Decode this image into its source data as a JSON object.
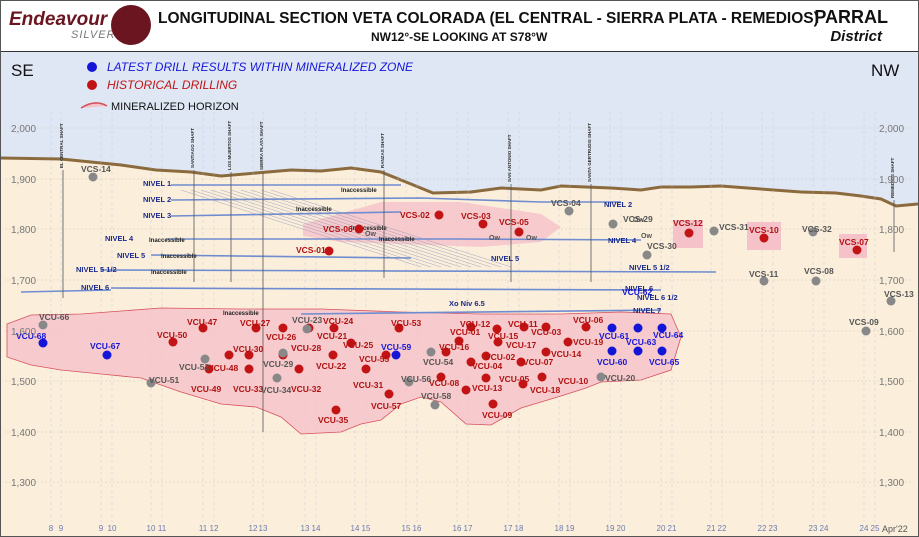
{
  "header": {
    "logo_name": "Endeavour",
    "logo_sub": "SILVER",
    "title": "LONGITUDINAL SECTION VETA COLORADA (EL CENTRAL - SIERRA PLATA - REMEDIOS)",
    "subtitle": "NW12°-SE LOOKING AT S78°W",
    "district_name": "PARRAL",
    "district_sub": "District"
  },
  "directions": {
    "left": "SE",
    "right": "NW"
  },
  "legend": {
    "latest": "LATEST DRILL RESULTS WITHIN MINERALIZED ZONE",
    "historical": "HISTORICAL DRILLING",
    "horizon": "MINERALIZED HORIZON"
  },
  "colors": {
    "sky": "#dfe7f5",
    "ground": "#fbefdc",
    "terrain": "#8b6a3e",
    "zone": "#f6c2c9",
    "blue_hole": "#1515d8",
    "red_hole": "#c21414",
    "gray_hole": "#888888",
    "level_line": "#6f8cd0",
    "label_blue": "#1a2a8c",
    "label_red": "#b01010"
  },
  "elevations": [
    "2,000",
    "1,900",
    "1,800",
    "1,700",
    "1,600",
    "1,500",
    "1,400",
    "1,300"
  ],
  "grid_labels": [
    "8",
    "9",
    "10",
    "11",
    "12",
    "13",
    "14",
    "15",
    "16",
    "17",
    "18",
    "19",
    "20",
    "21",
    "22",
    "23",
    "24",
    "25"
  ],
  "date": "Apr'22",
  "shafts": [
    "EL CENTRAL SHAFT",
    "SANTIAGO SHAFT",
    "LOS MUERTOS SHAFT",
    "SIERRA PLATA SHAFT",
    "RANZAS SHAFT",
    "SAN ANTONIO SHAFT",
    "SANTA GERTRUDIS SHAFT",
    "REMEDIOS SHAFT"
  ],
  "levels": [
    "NIVEL 1",
    "NIVEL 2",
    "NIVEL 3",
    "NIVEL 4",
    "NIVEL 5",
    "NIVEL 5 1/2",
    "NIVEL 6",
    "NIVEL 2",
    "NIVEL 4",
    "NIVEL 5 1/2",
    "NIVEL 6",
    "NIVEL 6 1/2",
    "NIVEL 7",
    "Xo Niv 6.5",
    "NIVEL 5"
  ],
  "level_notes": [
    "Inaccessible",
    "Inaccessible",
    "Inaccessible",
    "Inaccessible",
    "Inaccessible",
    "Inaccessible",
    "Inaccessible",
    "Inaccessible"
  ],
  "ow_notes": [
    "Ow",
    "Ow",
    "Ow",
    "Ow",
    "Ow"
  ],
  "holes": [
    {
      "id": "VCU-68",
      "type": "blue"
    },
    {
      "id": "VCU-67",
      "type": "blue"
    },
    {
      "id": "VCU-59",
      "type": "blue"
    },
    {
      "id": "VCU-61",
      "type": "blue"
    },
    {
      "id": "VCU-62",
      "type": "blue"
    },
    {
      "id": "VCU-63",
      "type": "blue"
    },
    {
      "id": "VCU-64",
      "type": "blue"
    },
    {
      "id": "VCU-60",
      "type": "blue"
    },
    {
      "id": "VCU-65",
      "type": "blue"
    },
    {
      "id": "VCS-02",
      "type": "red"
    },
    {
      "id": "VCS-03",
      "type": "red"
    },
    {
      "id": "VCS-05",
      "type": "red"
    },
    {
      "id": "VCS-06",
      "type": "red"
    },
    {
      "id": "VCS-01",
      "type": "red"
    },
    {
      "id": "VCS-12",
      "type": "red"
    },
    {
      "id": "VCS-10",
      "type": "red"
    },
    {
      "id": "VCS-07",
      "type": "red"
    },
    {
      "id": "VCU-50",
      "type": "red"
    },
    {
      "id": "VCU-47",
      "type": "red"
    },
    {
      "id": "VCU-27",
      "type": "red"
    },
    {
      "id": "VCU-26",
      "type": "red"
    },
    {
      "id": "VCU-24",
      "type": "red"
    },
    {
      "id": "VCU-53",
      "type": "red"
    },
    {
      "id": "VCU-21",
      "type": "red"
    },
    {
      "id": "VCU-48",
      "type": "red"
    },
    {
      "id": "VCU-30",
      "type": "red"
    },
    {
      "id": "VCU-28",
      "type": "red"
    },
    {
      "id": "VCU-25",
      "type": "red"
    },
    {
      "id": "VCU-55",
      "type": "red"
    },
    {
      "id": "VCU-22",
      "type": "red"
    },
    {
      "id": "VCU-49",
      "type": "red"
    },
    {
      "id": "VCU-33",
      "type": "red"
    },
    {
      "id": "VCU-32",
      "type": "red"
    },
    {
      "id": "VCU-31",
      "type": "red"
    },
    {
      "id": "VCU-57",
      "type": "red"
    },
    {
      "id": "VCU-35",
      "type": "red"
    },
    {
      "id": "VCU-12",
      "type": "red"
    },
    {
      "id": "VCU-11",
      "type": "red"
    },
    {
      "id": "VCU-01",
      "type": "red"
    },
    {
      "id": "VCU-15",
      "type": "red"
    },
    {
      "id": "VCU-03",
      "type": "red"
    },
    {
      "id": "VCU-06",
      "type": "red"
    },
    {
      "id": "VCU-16",
      "type": "red"
    },
    {
      "id": "VCU-17",
      "type": "red"
    },
    {
      "id": "VCU-19",
      "type": "red"
    },
    {
      "id": "VCU-02",
      "type": "red"
    },
    {
      "id": "VCU-14",
      "type": "red"
    },
    {
      "id": "VCU-04",
      "type": "red"
    },
    {
      "id": "VCU-07",
      "type": "red"
    },
    {
      "id": "VCU-08",
      "type": "red"
    },
    {
      "id": "VCU-05",
      "type": "red"
    },
    {
      "id": "VCU-10",
      "type": "red"
    },
    {
      "id": "VCU-13",
      "type": "red"
    },
    {
      "id": "VCU-18",
      "type": "red"
    },
    {
      "id": "VCU-09",
      "type": "red"
    },
    {
      "id": "VCS-14",
      "type": "gray"
    },
    {
      "id": "VCS-04",
      "type": "gray"
    },
    {
      "id": "VCS-29",
      "type": "gray"
    },
    {
      "id": "VCS-30",
      "type": "gray"
    },
    {
      "id": "VCS-31",
      "type": "gray"
    },
    {
      "id": "VCS-32",
      "type": "gray"
    },
    {
      "id": "VCS-11",
      "type": "gray"
    },
    {
      "id": "VCS-08",
      "type": "gray"
    },
    {
      "id": "VCS-13",
      "type": "gray"
    },
    {
      "id": "VCS-09",
      "type": "gray"
    },
    {
      "id": "VCU-66",
      "type": "gray"
    },
    {
      "id": "VCU-23",
      "type": "gray"
    },
    {
      "id": "VCU-52",
      "type": "gray"
    },
    {
      "id": "VCU-29",
      "type": "gray"
    },
    {
      "id": "VCU-51",
      "type": "gray"
    },
    {
      "id": "VCU-34",
      "type": "gray"
    },
    {
      "id": "VCU-54",
      "type": "gray"
    },
    {
      "id": "VCU-56",
      "type": "gray"
    },
    {
      "id": "VCU-58",
      "type": "gray"
    },
    {
      "id": "VCU-20",
      "type": "gray"
    }
  ]
}
